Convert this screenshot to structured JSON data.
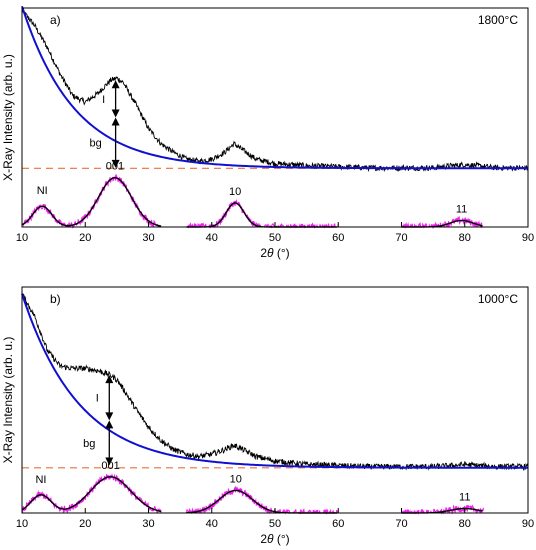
{
  "chart_data": [
    {
      "type": "line",
      "panel_label": "a)",
      "temperature_label": "1800°C",
      "xlabel_prefix": "2",
      "xlabel_theta": "θ",
      "xlabel_unit": " (°)",
      "ylabel": "X-Ray Intensity (arb. u.)",
      "xlim": [
        10,
        90
      ],
      "ylim": [
        0,
        1
      ],
      "x_ticks": [
        10,
        20,
        30,
        40,
        50,
        60,
        70,
        80,
        90
      ],
      "baseline_level": 0.268,
      "series": [
        {
          "role": "measured",
          "color": "#000000",
          "x": [
            10,
            12,
            14,
            16,
            18,
            20,
            22,
            24,
            25,
            26,
            28,
            30,
            32,
            34,
            36,
            38,
            40,
            42,
            43.5,
            45,
            47,
            50,
            55,
            60,
            65,
            70,
            75,
            78,
            80,
            82,
            85,
            90
          ],
          "y": [
            0.99,
            0.92,
            0.82,
            0.7,
            0.6,
            0.57,
            0.61,
            0.67,
            0.68,
            0.66,
            0.56,
            0.45,
            0.38,
            0.34,
            0.31,
            0.3,
            0.31,
            0.34,
            0.38,
            0.35,
            0.31,
            0.29,
            0.28,
            0.275,
            0.27,
            0.27,
            0.27,
            0.28,
            0.285,
            0.28,
            0.27,
            0.27
          ]
        },
        {
          "role": "background fit",
          "color": "#1010d0",
          "amplitude": 0.74,
          "decay_deg": 8.3
        },
        {
          "role": "peak fit",
          "color": "#000000",
          "peaks": [
            {
              "center": 13.2,
              "height": 0.095,
              "width": 1.5
            },
            {
              "center": 24.7,
              "height": 0.225,
              "width": 2.6
            },
            {
              "center": 43.7,
              "height": 0.11,
              "width": 1.4
            },
            {
              "center": 79.5,
              "height": 0.03,
              "width": 1.8
            }
          ]
        },
        {
          "role": "background-subtracted data",
          "color": "#ee22ee",
          "ranges": [
            [
              10,
              32
            ],
            [
              36,
              60
            ],
            [
              70,
              83
            ]
          ]
        }
      ],
      "annotations": {
        "I": {
          "text": "I",
          "x": 24.8,
          "y_top": 0.67,
          "y_bottom": 0.5
        },
        "bg": {
          "text": "bg",
          "x": 24.8,
          "y_top": 0.5,
          "y_bottom": 0.27
        },
        "peak_labels": [
          {
            "text": "NI",
            "x": 13.2
          },
          {
            "text": "001",
            "x": 24.7
          },
          {
            "text": "10",
            "x": 43.7
          },
          {
            "text": "11",
            "x": 79.5
          }
        ]
      }
    },
    {
      "type": "line",
      "panel_label": "b)",
      "temperature_label": "1000°C",
      "xlabel_prefix": "2",
      "xlabel_theta": "θ",
      "xlabel_unit": " (°)",
      "ylabel": "X-Ray Intensity (arb. u.)",
      "xlim": [
        10,
        90
      ],
      "ylim": [
        0,
        1
      ],
      "x_ticks": [
        10,
        20,
        30,
        40,
        50,
        60,
        70,
        80,
        90
      ],
      "baseline_level": 0.2,
      "series": [
        {
          "role": "measured",
          "color": "#000000",
          "x": [
            10,
            12,
            14,
            16,
            18,
            20,
            22,
            24,
            25,
            26,
            28,
            30,
            32,
            34,
            36,
            38,
            40,
            42,
            43.5,
            45,
            47,
            50,
            55,
            60,
            65,
            70,
            75,
            78,
            80,
            82,
            85,
            90
          ],
          "y": [
            0.97,
            0.87,
            0.72,
            0.65,
            0.64,
            0.64,
            0.63,
            0.61,
            0.59,
            0.55,
            0.46,
            0.38,
            0.32,
            0.28,
            0.26,
            0.25,
            0.26,
            0.28,
            0.3,
            0.28,
            0.25,
            0.23,
            0.215,
            0.21,
            0.205,
            0.205,
            0.205,
            0.21,
            0.215,
            0.21,
            0.205,
            0.205
          ]
        },
        {
          "role": "background fit",
          "color": "#1010d0",
          "amplitude": 0.77,
          "decay_deg": 9.0
        },
        {
          "role": "peak fit",
          "color": "#000000",
          "peaks": [
            {
              "center": 13.0,
              "height": 0.08,
              "width": 1.6
            },
            {
              "center": 24.0,
              "height": 0.16,
              "width": 3.2
            },
            {
              "center": 43.8,
              "height": 0.1,
              "width": 2.6
            },
            {
              "center": 80.0,
              "height": 0.02,
              "width": 2.2
            }
          ]
        },
        {
          "role": "background-subtracted data",
          "color": "#ee22ee",
          "ranges": [
            [
              10,
              32
            ],
            [
              36,
              60
            ],
            [
              70,
              83
            ]
          ]
        }
      ],
      "annotations": {
        "I": {
          "text": "I",
          "x": 23.8,
          "y_top": 0.61,
          "y_bottom": 0.41
        },
        "bg": {
          "text": "bg",
          "x": 23.8,
          "y_top": 0.41,
          "y_bottom": 0.21
        },
        "peak_labels": [
          {
            "text": "NI",
            "x": 13.0
          },
          {
            "text": "001",
            "x": 24.0
          },
          {
            "text": "10",
            "x": 43.8
          },
          {
            "text": "11",
            "x": 80.0
          }
        ]
      }
    }
  ]
}
